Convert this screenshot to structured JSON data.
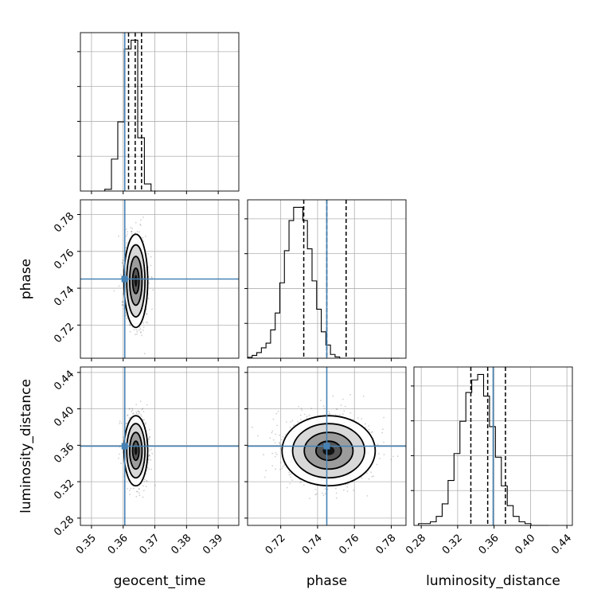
{
  "chart_data": {
    "type": "corner",
    "parameters": [
      "geocent_time",
      "phase",
      "luminosity_distance"
    ],
    "axis_labels": {
      "geocent_time": "geocent_time",
      "phase": "phase",
      "luminosity_distance": "luminosity_distance"
    },
    "truths": {
      "geocent_time": 0.3605,
      "phase": 0.745,
      "luminosity_distance": 0.359
    },
    "ranges": {
      "geocent_time": [
        0.3465,
        0.3965
      ],
      "phase": [
        0.702,
        0.788
      ],
      "luminosity_distance": [
        0.272,
        0.446
      ]
    },
    "ticks": {
      "geocent_time": [
        "0.35",
        "0.36",
        "0.37",
        "0.38",
        "0.39"
      ],
      "phase": [
        "0.72",
        "0.74",
        "0.76",
        "0.78"
      ],
      "luminosity_distance": [
        "0.28",
        "0.32",
        "0.36",
        "0.40",
        "0.44"
      ]
    },
    "grid": true,
    "marginals": {
      "geocent_time": {
        "bin_edges": [
          0.3542,
          0.3563,
          0.3583,
          0.3604,
          0.3625,
          0.3646,
          0.3667,
          0.3688,
          0.3708
        ],
        "counts": [
          1,
          18,
          39,
          80,
          85,
          30,
          4,
          0
        ],
        "quantiles": [
          0.3617,
          0.3638,
          0.3658
        ]
      },
      "phase": {
        "bin_edges": [
          0.702,
          0.7045,
          0.707,
          0.7095,
          0.712,
          0.7145,
          0.717,
          0.7195,
          0.722,
          0.7245,
          0.727,
          0.7295,
          0.732,
          0.7345,
          0.737,
          0.7395,
          0.742,
          0.7445,
          0.747,
          0.7495,
          0.752,
          0.7545,
          0.757,
          0.7595,
          0.762,
          0.7645,
          0.767,
          0.7695,
          0.772,
          0.7745,
          0.777,
          0.7795,
          0.782,
          0.7845
        ],
        "counts": [
          0.5,
          1.5,
          3,
          5.5,
          8,
          15,
          24,
          40,
          57,
          73,
          80,
          80,
          73,
          58,
          41,
          26,
          14,
          7,
          2,
          0.7,
          0,
          0,
          0,
          0,
          0,
          0,
          0,
          0,
          0,
          0,
          0,
          0,
          0
        ],
        "quantiles": [
          0.7325,
          0.745,
          0.7555
        ]
      },
      "luminosity_distance": {
        "bin_edges": [
          0.277,
          0.2835,
          0.29,
          0.2965,
          0.303,
          0.3095,
          0.316,
          0.3225,
          0.329,
          0.3355,
          0.342,
          0.3485,
          0.355,
          0.3615,
          0.368,
          0.3745,
          0.381,
          0.3875,
          0.394,
          0.4005,
          0.407,
          0.4135,
          0.42
        ],
        "counts": [
          1,
          1,
          2,
          5,
          12,
          25,
          40,
          58,
          74,
          81,
          84,
          72,
          55,
          38,
          22,
          11,
          5,
          2,
          1,
          0,
          0,
          0
        ],
        "quantiles": [
          0.3345,
          0.353,
          0.3725
        ]
      }
    },
    "joint_peaks": {
      "geocent_time|phase": {
        "x": 0.364,
        "y": 0.744
      },
      "geocent_time|luminosity_distance": {
        "x": 0.364,
        "y": 0.354
      },
      "phase|luminosity_distance": {
        "x": 0.746,
        "y": 0.354
      }
    },
    "contour_levels": 4
  }
}
